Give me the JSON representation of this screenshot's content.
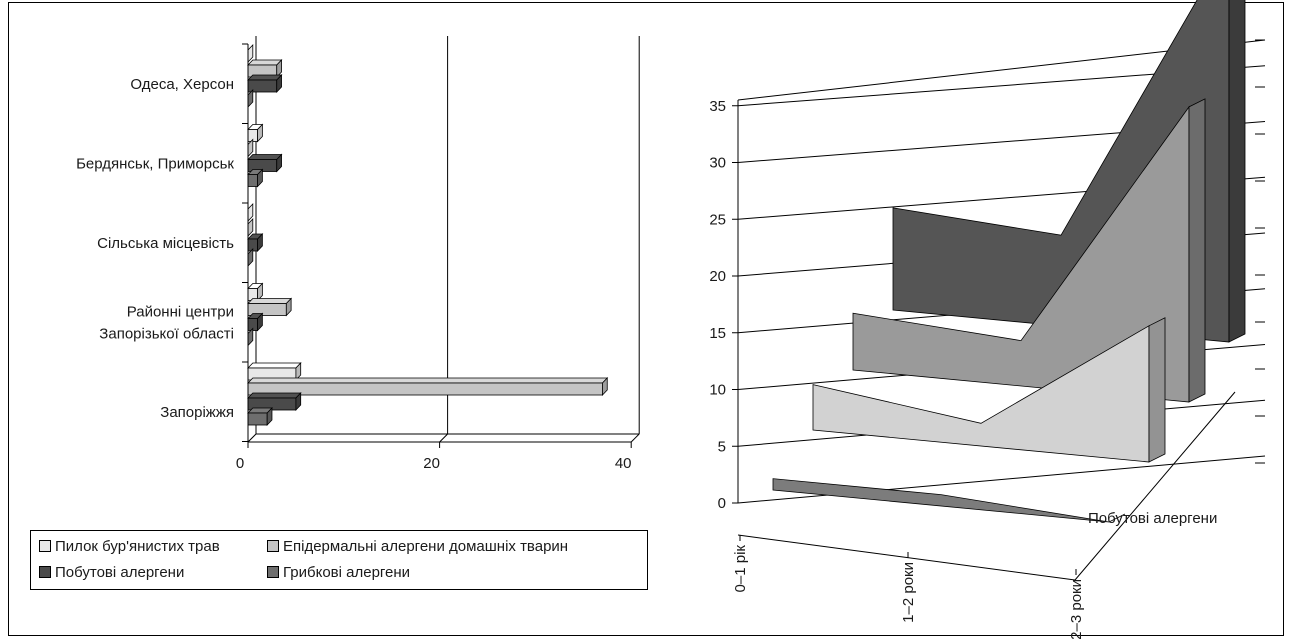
{
  "chart_data": [
    {
      "type": "bar",
      "orientation": "horizontal",
      "categories": [
        "Одеса, Херсон",
        "Бердянськ, Приморськ",
        "Сільська місцевість",
        "Районні центри\nЗапорізької області",
        "Запоріжжя"
      ],
      "series": [
        {
          "name": "Пилок бур'янистих трав",
          "color": "#e8e8e8",
          "values": [
            0,
            1,
            0,
            1,
            5
          ]
        },
        {
          "name": "Епідермальні алергени домашніх тварин",
          "color": "#c4c4c4",
          "values": [
            3,
            0,
            0,
            4,
            37
          ]
        },
        {
          "name": "Побутові алергени",
          "color": "#4a4a4a",
          "values": [
            3,
            3,
            1,
            1,
            5
          ]
        },
        {
          "name": "Грибкові алергени",
          "color": "#6e6e6e",
          "values": [
            0,
            1,
            0,
            0,
            2
          ]
        }
      ],
      "xticks": [
        "0",
        "20",
        "40"
      ],
      "xlim": [
        0,
        40
      ],
      "grid": "vertical",
      "legend_position": "bottom"
    },
    {
      "type": "area",
      "projection": "3d",
      "categories": [
        "0–1 рік",
        "1–2 роки",
        "2–3 роки"
      ],
      "yticks": [
        "0",
        "5",
        "10",
        "15",
        "20",
        "25",
        "30",
        "35"
      ],
      "ylim": [
        0,
        35
      ],
      "series_axis_label": "Побутові алергени",
      "series": [
        {
          "color": "#7c7c7c",
          "values": [
            1,
            1,
            0
          ]
        },
        {
          "color": "#d2d2d2",
          "values": [
            4,
            2,
            12
          ]
        },
        {
          "color": "#9a9a9a",
          "values": [
            5,
            4,
            26
          ]
        },
        {
          "color": "#555555",
          "values": [
            9,
            8,
            35
          ]
        }
      ]
    }
  ]
}
